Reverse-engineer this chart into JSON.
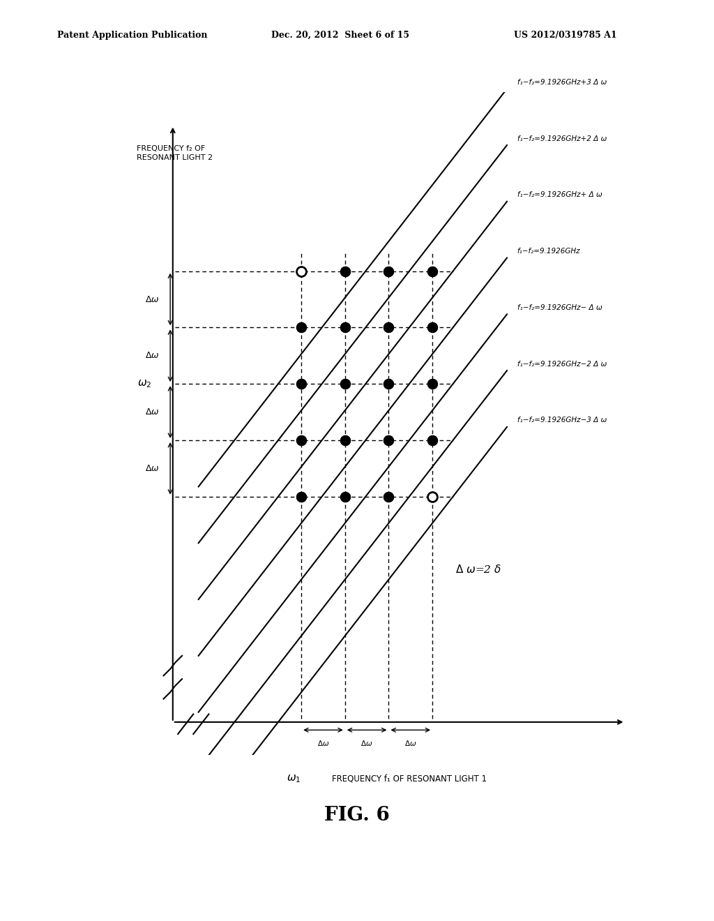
{
  "header_left": "Patent Application Publication",
  "header_mid": "Dec. 20, 2012  Sheet 6 of 15",
  "header_right": "US 2012/0319785 A1",
  "fig_label": "FIG. 6",
  "ylabel": "FREQUENCY f₂ OF\nRESONANT LIGHT 2",
  "xlabel_omega": "ω₁",
  "xlabel_text": "FREQUENCY f₁ OF RESONANT LIGHT 1",
  "omega2_label": "ω₂",
  "delta_omega_label": "Δω",
  "delta_omega_eq": "Δ ω=2 δ",
  "line_labels": [
    "f₁−f₂=9.1926GHz−3 Δ ω",
    "f₁−f₂=9.1926GHz−2 Δ ω",
    "f₁−f₂=9.1926GHz− Δ ω",
    "f₁−f₂=9.1926GHz",
    "f₁−f₂=9.1926GHz+ Δ ω",
    "f₁−f₂=9.1926GHz+2 Δ ω",
    "f₁−f₂=9.1926GHz+3 Δ ω"
  ],
  "background_color": "#ffffff",
  "line_color": "#000000",
  "dot_color": "#000000",
  "dashed_color": "#000000"
}
